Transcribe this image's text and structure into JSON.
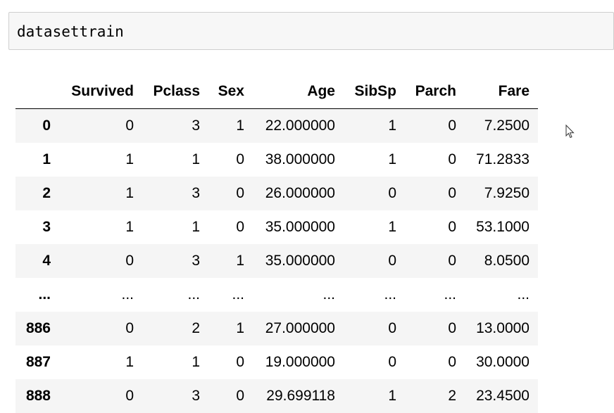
{
  "code_cell": {
    "source": "datasettrain"
  },
  "dataframe": {
    "columns": [
      "",
      "Survived",
      "Pclass",
      "Sex",
      "Age",
      "SibSp",
      "Parch",
      "Fare"
    ],
    "rows": [
      {
        "index": "0",
        "values": [
          "0",
          "3",
          "1",
          "22.000000",
          "1",
          "0",
          "7.2500"
        ]
      },
      {
        "index": "1",
        "values": [
          "1",
          "1",
          "0",
          "38.000000",
          "1",
          "0",
          "71.2833"
        ]
      },
      {
        "index": "2",
        "values": [
          "1",
          "3",
          "0",
          "26.000000",
          "0",
          "0",
          "7.9250"
        ]
      },
      {
        "index": "3",
        "values": [
          "1",
          "1",
          "0",
          "35.000000",
          "1",
          "0",
          "53.1000"
        ]
      },
      {
        "index": "4",
        "values": [
          "0",
          "3",
          "1",
          "35.000000",
          "0",
          "0",
          "8.0500"
        ]
      },
      {
        "index": "...",
        "values": [
          "...",
          "...",
          "...",
          "...",
          "...",
          "...",
          "..."
        ]
      },
      {
        "index": "886",
        "values": [
          "0",
          "2",
          "1",
          "27.000000",
          "0",
          "0",
          "13.0000"
        ]
      },
      {
        "index": "887",
        "values": [
          "1",
          "1",
          "0",
          "19.000000",
          "0",
          "0",
          "30.0000"
        ]
      },
      {
        "index": "888",
        "values": [
          "0",
          "3",
          "0",
          "29.699118",
          "1",
          "2",
          "23.4500"
        ]
      }
    ]
  },
  "cursor": {
    "icon": "mouse-pointer-icon"
  }
}
